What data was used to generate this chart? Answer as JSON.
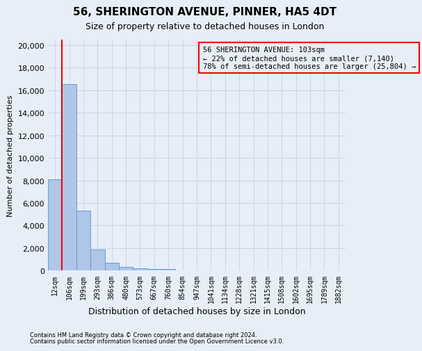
{
  "title_line1": "56, SHERINGTON AVENUE, PINNER, HA5 4DT",
  "title_line2": "Size of property relative to detached houses in London",
  "xlabel": "Distribution of detached houses by size in London",
  "ylabel": "Number of detached properties",
  "bar_labels": [
    "12sqm",
    "106sqm",
    "199sqm",
    "293sqm",
    "386sqm",
    "480sqm",
    "573sqm",
    "667sqm",
    "760sqm",
    "854sqm",
    "947sqm",
    "1041sqm",
    "1134sqm",
    "1228sqm",
    "1321sqm",
    "1415sqm",
    "1508sqm",
    "1602sqm",
    "1695sqm",
    "1789sqm",
    "1882sqm"
  ],
  "bar_heights": [
    8100,
    16500,
    5300,
    1850,
    700,
    310,
    200,
    160,
    150,
    0,
    0,
    0,
    0,
    0,
    0,
    0,
    0,
    0,
    0,
    0,
    0
  ],
  "bar_color": "#aec6e8",
  "bar_edge_color": "#5a96c8",
  "annotation_text_line1": "56 SHERINGTON AVENUE: 103sqm",
  "annotation_text_line2": "← 22% of detached houses are smaller (7,140)",
  "annotation_text_line3": "78% of semi-detached houses are larger (25,804) →",
  "ylim": [
    0,
    20500
  ],
  "yticks": [
    0,
    2000,
    4000,
    6000,
    8000,
    10000,
    12000,
    14000,
    16000,
    18000,
    20000
  ],
  "grid_color": "#c8d4e8",
  "bg_color": "#e8eef8",
  "footnote1": "Contains HM Land Registry data © Crown copyright and database right 2024.",
  "footnote2": "Contains public sector information licensed under the Open Government Licence v3.0."
}
